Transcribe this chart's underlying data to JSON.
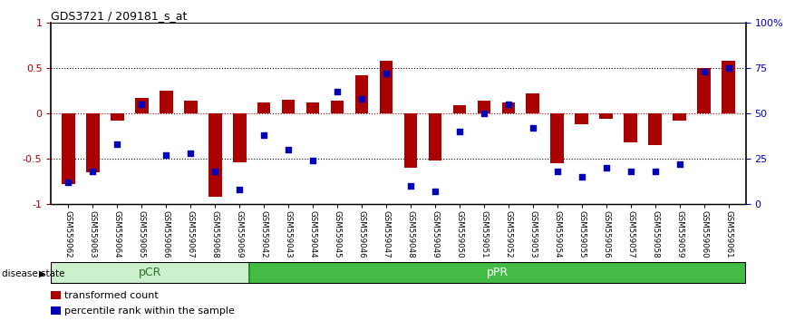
{
  "title": "GDS3721 / 209181_s_at",
  "samples": [
    "GSM559062",
    "GSM559063",
    "GSM559064",
    "GSM559065",
    "GSM559066",
    "GSM559067",
    "GSM559068",
    "GSM559069",
    "GSM559042",
    "GSM559043",
    "GSM559044",
    "GSM559045",
    "GSM559046",
    "GSM559047",
    "GSM559048",
    "GSM559049",
    "GSM559050",
    "GSM559051",
    "GSM559052",
    "GSM559053",
    "GSM559054",
    "GSM559055",
    "GSM559056",
    "GSM559057",
    "GSM559058",
    "GSM559059",
    "GSM559060",
    "GSM559061"
  ],
  "bar_values": [
    -0.78,
    -0.65,
    -0.08,
    0.17,
    0.25,
    0.14,
    -0.92,
    -0.54,
    0.12,
    0.15,
    0.12,
    0.14,
    0.42,
    0.58,
    -0.6,
    -0.52,
    0.09,
    0.14,
    0.12,
    0.22,
    -0.55,
    -0.12,
    -0.06,
    -0.32,
    -0.35,
    -0.08,
    0.5,
    0.58
  ],
  "percentile_values": [
    12,
    18,
    33,
    55,
    27,
    28,
    18,
    8,
    38,
    30,
    24,
    62,
    58,
    72,
    10,
    7,
    40,
    50,
    55,
    42,
    18,
    15,
    20,
    18,
    18,
    22,
    73,
    75
  ],
  "pCR_count": 8,
  "pPR_count": 20,
  "bar_color": "#aa0000",
  "dot_color": "#0000bb",
  "bar_width": 0.55,
  "ylim": [
    -1.0,
    1.0
  ],
  "yticks_left": [
    -1,
    -0.5,
    0,
    0.5,
    1
  ],
  "ytick_labels_left": [
    "-1",
    "-0.5",
    "0",
    "0.5",
    "1"
  ],
  "yticks_right": [
    0,
    25,
    50,
    75,
    100
  ],
  "ytick_labels_right": [
    "0",
    "25",
    "50",
    "75",
    "100%"
  ],
  "dotted_lines_black": [
    -0.5,
    0.5
  ],
  "dotted_line_red": 0,
  "pCR_color": "#ccf0cc",
  "pPR_color": "#44bb44",
  "label_color_pCR": "#227722",
  "legend_red_label": "transformed count",
  "legend_blue_label": "percentile rank within the sample",
  "disease_state_label": "disease state",
  "background_color": "#ffffff"
}
